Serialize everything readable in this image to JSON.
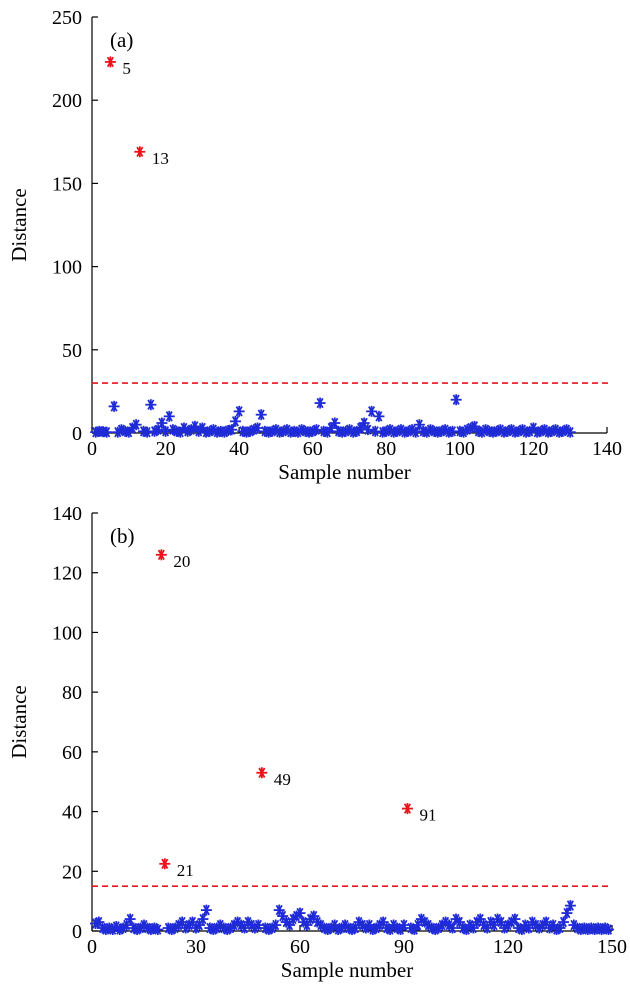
{
  "colors": {
    "normal": "#1f2bd6",
    "outlier": "#e8141c",
    "threshold": "#e8141c",
    "axis": "#000000"
  },
  "chart_data": [
    {
      "type": "scatter",
      "panel_label": "(a)",
      "xlabel": "Sample number",
      "ylabel": "Distance",
      "xlim": [
        0,
        140
      ],
      "ylim": [
        0,
        250
      ],
      "xticks": [
        0,
        20,
        40,
        60,
        80,
        100,
        120,
        140
      ],
      "yticks": [
        0,
        50,
        100,
        150,
        200,
        250
      ],
      "threshold": 30,
      "outliers": [
        {
          "x": 5,
          "y": 223,
          "label": "5"
        },
        {
          "x": 13,
          "y": 169,
          "label": "13"
        }
      ],
      "points": [
        [
          1,
          0.5
        ],
        [
          2,
          1.0
        ],
        [
          3,
          0.8
        ],
        [
          4,
          0.5
        ],
        [
          6,
          16
        ],
        [
          7,
          0.5
        ],
        [
          8,
          2
        ],
        [
          9,
          1
        ],
        [
          10,
          0.5
        ],
        [
          11,
          3
        ],
        [
          12,
          5
        ],
        [
          14,
          1
        ],
        [
          15,
          0.5
        ],
        [
          16,
          17
        ],
        [
          17,
          1
        ],
        [
          18,
          2
        ],
        [
          19,
          6
        ],
        [
          20,
          1
        ],
        [
          21,
          10
        ],
        [
          22,
          2
        ],
        [
          23,
          1
        ],
        [
          24,
          0.5
        ],
        [
          25,
          3
        ],
        [
          26,
          1
        ],
        [
          27,
          2
        ],
        [
          28,
          4
        ],
        [
          29,
          1
        ],
        [
          30,
          3
        ],
        [
          31,
          0.5
        ],
        [
          32,
          1
        ],
        [
          33,
          2
        ],
        [
          34,
          0.5
        ],
        [
          35,
          1
        ],
        [
          36,
          0.5
        ],
        [
          37,
          1.5
        ],
        [
          38,
          2
        ],
        [
          39,
          7
        ],
        [
          40,
          13
        ],
        [
          41,
          1
        ],
        [
          42,
          0.5
        ],
        [
          43,
          1
        ],
        [
          44,
          2
        ],
        [
          45,
          3
        ],
        [
          46,
          11
        ],
        [
          47,
          1
        ],
        [
          48,
          0.5
        ],
        [
          49,
          1
        ],
        [
          50,
          2
        ],
        [
          51,
          0.5
        ],
        [
          52,
          1
        ],
        [
          53,
          2
        ],
        [
          54,
          0.5
        ],
        [
          55,
          1
        ],
        [
          56,
          0.5
        ],
        [
          57,
          2
        ],
        [
          58,
          1
        ],
        [
          59,
          0.5
        ],
        [
          60,
          1
        ],
        [
          61,
          2
        ],
        [
          62,
          18
        ],
        [
          63,
          1
        ],
        [
          64,
          0.5
        ],
        [
          65,
          3
        ],
        [
          66,
          6
        ],
        [
          67,
          1
        ],
        [
          68,
          0.5
        ],
        [
          69,
          1
        ],
        [
          70,
          2
        ],
        [
          71,
          0.5
        ],
        [
          72,
          1
        ],
        [
          73,
          3
        ],
        [
          74,
          6
        ],
        [
          75,
          2
        ],
        [
          76,
          13
        ],
        [
          77,
          1
        ],
        [
          78,
          10
        ],
        [
          79,
          0.5
        ],
        [
          80,
          1
        ],
        [
          81,
          2
        ],
        [
          82,
          0.5
        ],
        [
          83,
          1
        ],
        [
          84,
          2
        ],
        [
          85,
          0.5
        ],
        [
          86,
          1
        ],
        [
          87,
          2
        ],
        [
          88,
          0.5
        ],
        [
          89,
          5
        ],
        [
          90,
          1
        ],
        [
          91,
          0.5
        ],
        [
          92,
          2
        ],
        [
          93,
          1
        ],
        [
          94,
          0.5
        ],
        [
          95,
          1
        ],
        [
          96,
          2
        ],
        [
          97,
          0.5
        ],
        [
          98,
          1
        ],
        [
          99,
          20
        ],
        [
          100,
          1
        ],
        [
          101,
          0.5
        ],
        [
          102,
          2
        ],
        [
          103,
          3
        ],
        [
          104,
          4
        ],
        [
          105,
          1
        ],
        [
          106,
          0.5
        ],
        [
          107,
          2
        ],
        [
          108,
          1
        ],
        [
          109,
          0.5
        ],
        [
          110,
          1
        ],
        [
          111,
          2
        ],
        [
          112,
          0.5
        ],
        [
          113,
          1
        ],
        [
          114,
          2
        ],
        [
          115,
          0.5
        ],
        [
          116,
          1
        ],
        [
          117,
          2
        ],
        [
          118,
          0.5
        ],
        [
          119,
          1
        ],
        [
          120,
          3
        ],
        [
          121,
          0.5
        ],
        [
          122,
          1
        ],
        [
          123,
          2
        ],
        [
          124,
          0.5
        ],
        [
          125,
          1
        ],
        [
          126,
          2
        ],
        [
          127,
          0.5
        ],
        [
          128,
          1
        ],
        [
          129,
          2
        ],
        [
          130,
          0.5
        ]
      ]
    },
    {
      "type": "scatter",
      "panel_label": "(b)",
      "xlabel": "Sample number",
      "ylabel": "Distance",
      "xlim": [
        0,
        150
      ],
      "ylim": [
        0,
        140
      ],
      "xticks": [
        0,
        30,
        60,
        90,
        120,
        150
      ],
      "yticks": [
        0,
        20,
        40,
        60,
        80,
        100,
        120,
        140
      ],
      "threshold": 15,
      "outliers": [
        {
          "x": 20,
          "y": 126,
          "label": "20"
        },
        {
          "x": 21,
          "y": 22.5,
          "label": "21"
        },
        {
          "x": 49,
          "y": 53,
          "label": "49"
        },
        {
          "x": 91,
          "y": 41,
          "label": "91"
        }
      ],
      "points": [
        [
          1,
          2.5
        ],
        [
          2,
          3
        ],
        [
          3,
          1
        ],
        [
          4,
          0.5
        ],
        [
          5,
          1
        ],
        [
          6,
          0.5
        ],
        [
          7,
          1.5
        ],
        [
          8,
          0.5
        ],
        [
          9,
          1
        ],
        [
          10,
          2
        ],
        [
          11,
          4
        ],
        [
          12,
          1
        ],
        [
          13,
          0.5
        ],
        [
          14,
          1
        ],
        [
          15,
          2
        ],
        [
          16,
          1
        ],
        [
          17,
          0.5
        ],
        [
          18,
          1
        ],
        [
          19,
          0.5
        ],
        [
          22,
          1
        ],
        [
          23,
          0.5
        ],
        [
          24,
          1
        ],
        [
          25,
          2
        ],
        [
          26,
          3
        ],
        [
          27,
          1
        ],
        [
          28,
          2
        ],
        [
          29,
          3
        ],
        [
          30,
          1
        ],
        [
          31,
          2
        ],
        [
          32,
          4
        ],
        [
          33,
          7
        ],
        [
          34,
          1
        ],
        [
          35,
          0.5
        ],
        [
          36,
          1
        ],
        [
          37,
          2
        ],
        [
          38,
          1
        ],
        [
          39,
          0.5
        ],
        [
          40,
          1
        ],
        [
          41,
          2
        ],
        [
          42,
          3
        ],
        [
          43,
          2
        ],
        [
          44,
          1
        ],
        [
          45,
          3
        ],
        [
          46,
          2
        ],
        [
          47,
          1
        ],
        [
          48,
          2
        ],
        [
          50,
          1
        ],
        [
          51,
          0.5
        ],
        [
          52,
          1
        ],
        [
          53,
          2
        ],
        [
          54,
          7
        ],
        [
          55,
          5
        ],
        [
          56,
          3
        ],
        [
          57,
          2
        ],
        [
          58,
          4
        ],
        [
          59,
          5
        ],
        [
          60,
          6
        ],
        [
          61,
          3
        ],
        [
          62,
          2
        ],
        [
          63,
          4
        ],
        [
          64,
          5
        ],
        [
          65,
          3
        ],
        [
          66,
          2
        ],
        [
          67,
          1
        ],
        [
          68,
          0.5
        ],
        [
          69,
          1
        ],
        [
          70,
          2
        ],
        [
          71,
          0.5
        ],
        [
          72,
          1
        ],
        [
          73,
          2
        ],
        [
          74,
          1
        ],
        [
          75,
          0.5
        ],
        [
          76,
          1
        ],
        [
          77,
          3
        ],
        [
          78,
          2
        ],
        [
          79,
          1
        ],
        [
          80,
          2
        ],
        [
          81,
          0.5
        ],
        [
          82,
          1
        ],
        [
          83,
          2
        ],
        [
          84,
          3
        ],
        [
          85,
          1
        ],
        [
          86,
          0.5
        ],
        [
          87,
          2
        ],
        [
          88,
          1
        ],
        [
          89,
          0.5
        ],
        [
          90,
          2
        ],
        [
          92,
          1
        ],
        [
          93,
          0.5
        ],
        [
          94,
          2
        ],
        [
          95,
          4
        ],
        [
          96,
          3
        ],
        [
          97,
          2
        ],
        [
          98,
          1
        ],
        [
          99,
          0.5
        ],
        [
          100,
          1
        ],
        [
          101,
          2
        ],
        [
          102,
          3
        ],
        [
          103,
          2
        ],
        [
          104,
          1
        ],
        [
          105,
          4
        ],
        [
          106,
          3
        ],
        [
          107,
          1
        ],
        [
          108,
          0.5
        ],
        [
          109,
          2
        ],
        [
          110,
          1
        ],
        [
          111,
          3
        ],
        [
          112,
          4
        ],
        [
          113,
          2
        ],
        [
          114,
          1
        ],
        [
          115,
          3
        ],
        [
          116,
          2
        ],
        [
          117,
          4
        ],
        [
          118,
          3
        ],
        [
          119,
          1
        ],
        [
          120,
          2
        ],
        [
          121,
          3
        ],
        [
          122,
          4
        ],
        [
          123,
          1
        ],
        [
          124,
          0.5
        ],
        [
          125,
          2
        ],
        [
          126,
          1
        ],
        [
          127,
          3
        ],
        [
          128,
          2
        ],
        [
          129,
          1
        ],
        [
          130,
          2
        ],
        [
          131,
          3
        ],
        [
          132,
          1
        ],
        [
          133,
          2
        ],
        [
          134,
          0.5
        ],
        [
          135,
          1
        ],
        [
          136,
          3
        ],
        [
          137,
          6
        ],
        [
          138,
          8.5
        ],
        [
          139,
          2
        ],
        [
          140,
          1
        ],
        [
          141,
          0.5
        ],
        [
          142,
          1
        ],
        [
          143,
          0.5
        ],
        [
          144,
          1
        ],
        [
          145,
          0.5
        ],
        [
          146,
          1
        ],
        [
          147,
          0.5
        ],
        [
          148,
          1
        ],
        [
          149,
          0.5
        ]
      ]
    }
  ]
}
